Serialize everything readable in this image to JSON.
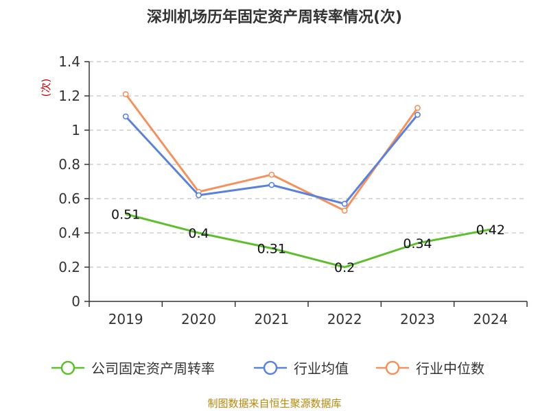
{
  "chart_data": {
    "type": "line",
    "title": "深圳机场历年固定资产周转率情况(次)",
    "ylabel": "(次)",
    "categories": [
      "2019",
      "2020",
      "2021",
      "2022",
      "2023",
      "2024"
    ],
    "ylim": [
      0,
      1.4
    ],
    "yticks": [
      0,
      0.2,
      0.4,
      0.6,
      0.8,
      1,
      1.2,
      1.4
    ],
    "ytick_labels": [
      "0",
      "0.2",
      "0.4",
      "0.6",
      "0.8",
      "1",
      "1.2",
      "1.4"
    ],
    "grid": true,
    "legend_position": "bottom",
    "series": [
      {
        "name": "公司固定资产周转率",
        "color": "#5dbf2e",
        "values": [
          0.51,
          0.4,
          0.31,
          0.2,
          0.34,
          0.42
        ],
        "labels": [
          "0.51",
          "0.4",
          "0.31",
          "0.2",
          "0.34",
          "0.42"
        ],
        "markers": false
      },
      {
        "name": "行业均值",
        "color": "#5b82db",
        "values": [
          1.08,
          0.62,
          0.68,
          0.57,
          1.09,
          null
        ],
        "markers": true
      },
      {
        "name": "行业中位数",
        "color": "#f5915c",
        "values": [
          1.21,
          0.64,
          0.74,
          0.53,
          1.13,
          null
        ],
        "markers": true
      }
    ],
    "source": "制图数据来自恒生聚源数据库"
  }
}
